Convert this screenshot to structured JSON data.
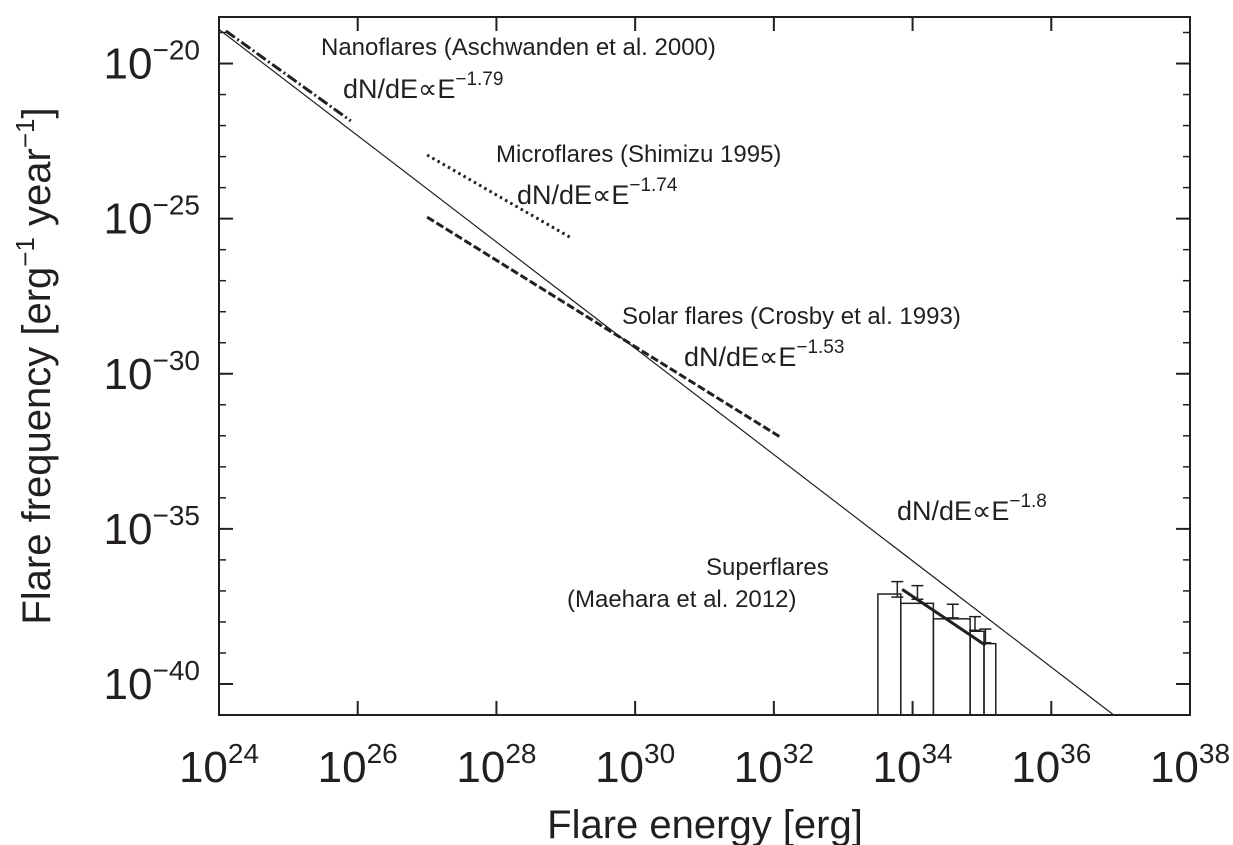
{
  "chart_data": {
    "type": "line",
    "xlabel": "Flare energy [erg]",
    "ylabel": "Flare frequency [erg",
    "ylabel_exp1": "−1",
    "ylabel_mid": " year",
    "ylabel_exp2": "−1",
    "ylabel_end": "]",
    "x_scale": "log",
    "y_scale": "log",
    "xlim_log10": [
      24,
      38
    ],
    "ylim_log10": [
      -41,
      -18.5
    ],
    "x_ticks": [
      {
        "base": "10",
        "exp": "24"
      },
      {
        "base": "10",
        "exp": "26"
      },
      {
        "base": "10",
        "exp": "28"
      },
      {
        "base": "10",
        "exp": "30"
      },
      {
        "base": "10",
        "exp": "32"
      },
      {
        "base": "10",
        "exp": "34"
      },
      {
        "base": "10",
        "exp": "36"
      },
      {
        "base": "10",
        "exp": "38"
      }
    ],
    "y_ticks": [
      {
        "base": "10",
        "exp": "−20"
      },
      {
        "base": "10",
        "exp": "−25"
      },
      {
        "base": "10",
        "exp": "−30"
      },
      {
        "base": "10",
        "exp": "−35"
      },
      {
        "base": "10",
        "exp": "−40"
      }
    ],
    "grid": false,
    "series": [
      {
        "style": "solid",
        "color": "#231f20",
        "points_log10": [
          [
            24,
            -18.9
          ],
          [
            36.9,
            -41
          ]
        ]
      },
      {
        "style": "dashdot",
        "color": "#231f20",
        "points_log10": [
          [
            24.1,
            -18.95
          ],
          [
            25.9,
            -21.85
          ]
        ]
      },
      {
        "style": "dotted",
        "color": "#231f20",
        "points_log10": [
          [
            27,
            -22.95
          ],
          [
            29.1,
            -25.65
          ]
        ]
      },
      {
        "style": "dashed",
        "color": "#231f20",
        "points_log10": [
          [
            27,
            -24.95
          ],
          [
            32.1,
            -32.05
          ]
        ]
      },
      {
        "style": "thick",
        "color": "#231f20",
        "points_log10": [
          [
            33.85,
            -36.95
          ],
          [
            35.05,
            -38.75
          ]
        ]
      }
    ],
    "histogram": {
      "bin_edges_log10": [
        33.5,
        33.83,
        34.3,
        34.83,
        35.03,
        35.2
      ],
      "values_log10": [
        -37.1,
        -37.4,
        -37.9,
        -38.3,
        -38.7
      ],
      "baseline_log10": -41
    },
    "error_points": [
      {
        "x_log10": 33.78,
        "y_log10": -36.95,
        "err": 0.25
      },
      {
        "x_log10": 34.07,
        "y_log10": -37.05,
        "err": 0.22
      },
      {
        "x_log10": 34.58,
        "y_log10": -37.65,
        "err": 0.22
      },
      {
        "x_log10": 34.9,
        "y_log10": -38.05,
        "err": 0.22
      },
      {
        "x_log10": 35.05,
        "y_log10": -38.45,
        "err": 0.22
      }
    ],
    "annotations": [
      {
        "id": "nano",
        "text": "Nanoflares (Aschwanden et al. 2000)",
        "eq": "dN/dE∝E",
        "exp": "−1.79"
      },
      {
        "id": "micro",
        "text": "Microflares (Shimizu 1995)",
        "eq": "dN/dE∝E",
        "exp": "−1.74"
      },
      {
        "id": "solar",
        "text": "Solar flares (Crosby et al. 1993)",
        "eq": "dN/dE∝E",
        "exp": "−1.53"
      },
      {
        "id": "main",
        "eq": "dN/dE∝E",
        "exp": "−1.8"
      },
      {
        "id": "super",
        "text": "Superflares",
        "text2": "(Maehara et al. 2012)"
      }
    ]
  }
}
